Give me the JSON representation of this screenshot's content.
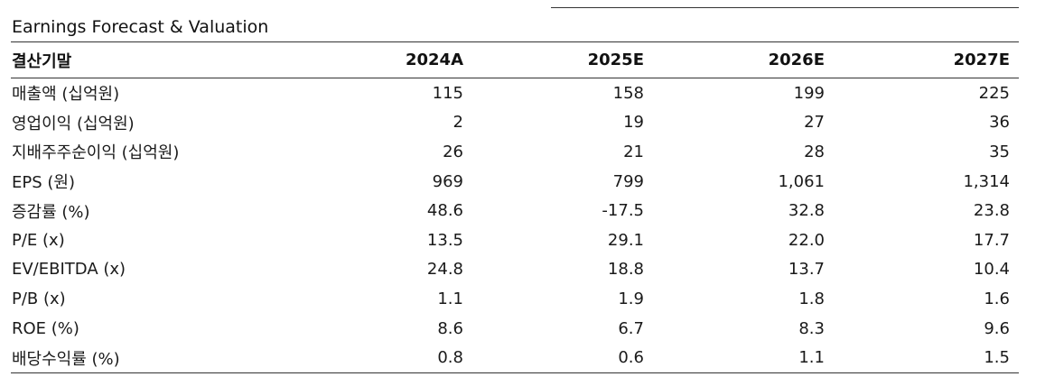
{
  "title": "Earnings Forecast & Valuation",
  "table": {
    "headers": [
      "결산기말",
      "2024A",
      "2025E",
      "2026E",
      "2027E"
    ],
    "rows": [
      [
        "매출액 (십억원)",
        "115",
        "158",
        "199",
        "225"
      ],
      [
        "영업이익 (십억원)",
        "2",
        "19",
        "27",
        "36"
      ],
      [
        "지배주주순이익 (십억원)",
        "26",
        "21",
        "28",
        "35"
      ],
      [
        "EPS (원)",
        "969",
        "799",
        "1,061",
        "1,314"
      ],
      [
        "증감률 (%)",
        "48.6",
        "-17.5",
        "32.8",
        "23.8"
      ],
      [
        "P/E (x)",
        "13.5",
        "29.1",
        "22.0",
        "17.7"
      ],
      [
        "EV/EBITDA (x)",
        "24.8",
        "18.8",
        "13.7",
        "10.4"
      ],
      [
        "P/B (x)",
        "1.1",
        "1.9",
        "1.8",
        "1.6"
      ],
      [
        "ROE (%)",
        "8.6",
        "6.7",
        "8.3",
        "9.6"
      ],
      [
        "배당수익률 (%)",
        "0.8",
        "0.6",
        "1.1",
        "1.5"
      ]
    ]
  }
}
